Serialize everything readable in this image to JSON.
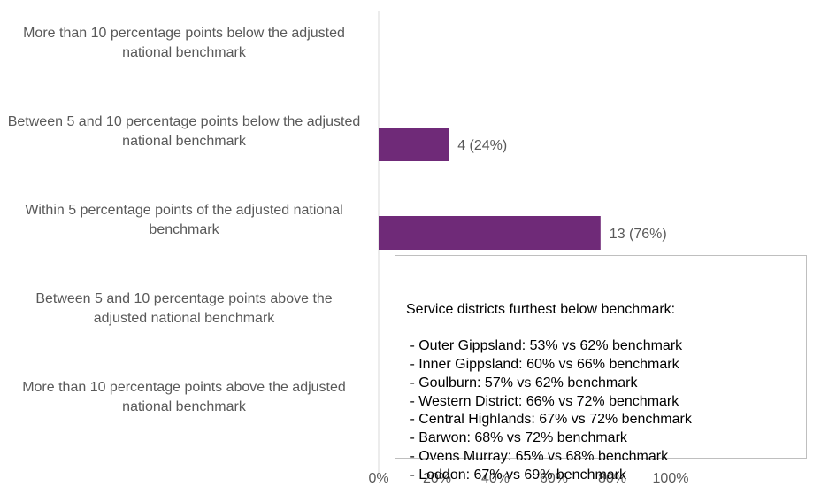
{
  "chart_data": {
    "type": "bar",
    "orientation": "horizontal",
    "categories": [
      "More than 10 percentage points below the adjusted national benchmark",
      "Between 5 and 10 percentage points below the adjusted national benchmark",
      "Within 5 percentage points of the adjusted national benchmark",
      "Between 5 and 10 percentage points above the adjusted national benchmark",
      "More than 10 percentage points above the adjusted national benchmark"
    ],
    "values": [
      0,
      24,
      76,
      0,
      0
    ],
    "value_labels": [
      null,
      "4 (24%)",
      "13 (76%)",
      null,
      null
    ],
    "color": "#6f2a78",
    "xlim": [
      0,
      100
    ],
    "xticks": [
      {
        "value": 0,
        "label": "0%"
      },
      {
        "value": 20,
        "label": "20%"
      },
      {
        "value": 40,
        "label": "40%"
      },
      {
        "value": 60,
        "label": "60%"
      },
      {
        "value": 80,
        "label": "80%"
      },
      {
        "value": 100,
        "label": "100%"
      }
    ],
    "grid": false,
    "annotation": {
      "title": "Service districts furthest below benchmark:",
      "items": [
        " - Outer Gippsland: 53% vs 62% benchmark",
        " - Inner Gippsland: 60% vs 66% benchmark",
        " - Goulburn: 57% vs 62% benchmark",
        " - Western District: 66% vs 72% benchmark",
        " - Central Highlands: 67% vs 72% benchmark",
        " - Barwon: 68% vs 72% benchmark",
        " - Ovens Murray: 65% vs 68% benchmark",
        " - Loddon: 67% vs 69% benchmark"
      ]
    }
  }
}
